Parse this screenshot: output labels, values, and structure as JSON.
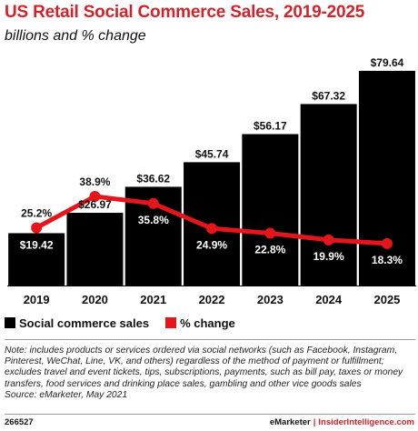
{
  "header": {
    "title": "US Retail Social Commerce Sales, 2019-2025",
    "subtitle": "billions and % change"
  },
  "chart_data": {
    "type": "bar",
    "categories": [
      "2019",
      "2020",
      "2021",
      "2022",
      "2023",
      "2024",
      "2025"
    ],
    "series": [
      {
        "name": "Social commerce sales",
        "type": "bar",
        "values": [
          19.42,
          26.97,
          36.62,
          45.74,
          56.17,
          67.32,
          79.64
        ],
        "labels": [
          "$19.42",
          "$26.97",
          "$36.62",
          "$45.74",
          "$56.17",
          "$67.32",
          "$79.64"
        ],
        "color": "#000000"
      },
      {
        "name": "% change",
        "type": "line",
        "values": [
          25.2,
          38.9,
          35.8,
          24.9,
          22.8,
          19.9,
          18.3
        ],
        "labels": [
          "25.2%",
          "38.9%",
          "35.8%",
          "24.9%",
          "22.8%",
          "19.9%",
          "18.3%"
        ],
        "color": "#e5161b"
      }
    ],
    "ylim": [
      0,
      85
    ],
    "y2lim": [
      0,
      100
    ],
    "grid": false,
    "legend": "bottom-left"
  },
  "legend": {
    "items": [
      {
        "label": "Social commerce sales",
        "color": "#000000"
      },
      {
        "label": "% change",
        "color": "#e5161b"
      }
    ]
  },
  "notes": {
    "note": "Note: includes products or services ordered via social networks (such as Facebook, Instagram, Pinterest, WeChat, Line, VK, and others) regardless of the method of payment or fulfillment; excludes travel and event tickets, tips, subscriptions, payments, such as bill pay, taxes or money transfers, food services and drinking place sales, gambling and other vice goods sales",
    "source": "Source: eMarketer, May 2021"
  },
  "footer": {
    "chart_id": "266527",
    "brand": "eMarketer",
    "separator": "|",
    "site": "InsiderIntelligence.com"
  }
}
